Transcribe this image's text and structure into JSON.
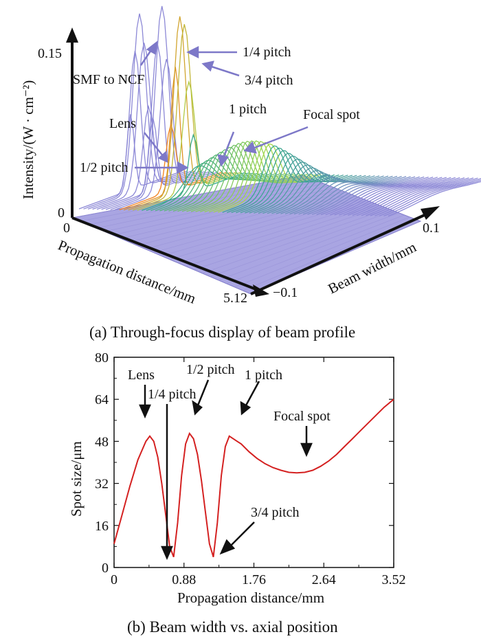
{
  "chart_data": [
    {
      "type": "surface",
      "caption": "(a) Through-focus display of beam profile",
      "zlabel": "Intensity/(W · cm⁻²)",
      "xlabel": "Propagation distance/mm",
      "ylabel": "Beam width/mm",
      "z_ticks": [
        "0.15",
        "0"
      ],
      "x_ticks": [
        "0",
        "5.12"
      ],
      "y_ticks": [
        "0.1",
        "−0.1"
      ],
      "annotations": [
        "SMF to NCF",
        "1/4 pitch",
        "3/4 pitch",
        "Lens",
        "1 pitch",
        "Focal spot",
        "1/2 pitch"
      ],
      "colors": {
        "peak": "#f07e1a",
        "mid": "#a6d84a",
        "low": "#36a98a",
        "base": "#8c88d6"
      }
    },
    {
      "type": "line",
      "caption": "(b) Beam width vs. axial position",
      "xlabel": "Propagation distance/mm",
      "ylabel": "Spot size/μm",
      "xlim": [
        0,
        3.52
      ],
      "ylim": [
        0,
        80
      ],
      "x_ticks": [
        "0",
        "0.88",
        "1.76",
        "2.64",
        "3.52"
      ],
      "y_ticks": [
        "0",
        "16",
        "32",
        "48",
        "64",
        "80"
      ],
      "series": [
        {
          "color": "#d42020",
          "x": [
            0,
            0.1,
            0.2,
            0.3,
            0.4,
            0.45,
            0.5,
            0.55,
            0.6,
            0.65,
            0.7,
            0.75,
            0.8,
            0.85,
            0.9,
            0.95,
            1.0,
            1.05,
            1.1,
            1.15,
            1.2,
            1.25,
            1.3,
            1.35,
            1.4,
            1.45,
            1.5,
            1.55,
            1.6,
            1.7,
            1.8,
            1.9,
            2.0,
            2.1,
            2.2,
            2.3,
            2.4,
            2.5,
            2.6,
            2.7,
            2.8,
            2.9,
            3.0,
            3.1,
            3.2,
            3.3,
            3.4,
            3.52
          ],
          "y": [
            9,
            20,
            31,
            41,
            48,
            50,
            48,
            42,
            32,
            20,
            8,
            4,
            17,
            35,
            47,
            51,
            49,
            43,
            33,
            21,
            9,
            4,
            17,
            35,
            46,
            50,
            49,
            48,
            47,
            44,
            41.5,
            39.5,
            38,
            37,
            36.2,
            36,
            36.2,
            37,
            38.5,
            40.5,
            43,
            46,
            49,
            52,
            55,
            58,
            61,
            64
          ]
        }
      ],
      "annotations": [
        "Lens",
        "1/4 pitch",
        "1/2 pitch",
        "1 pitch",
        "Focal spot",
        "3/4 pitch"
      ]
    }
  ]
}
